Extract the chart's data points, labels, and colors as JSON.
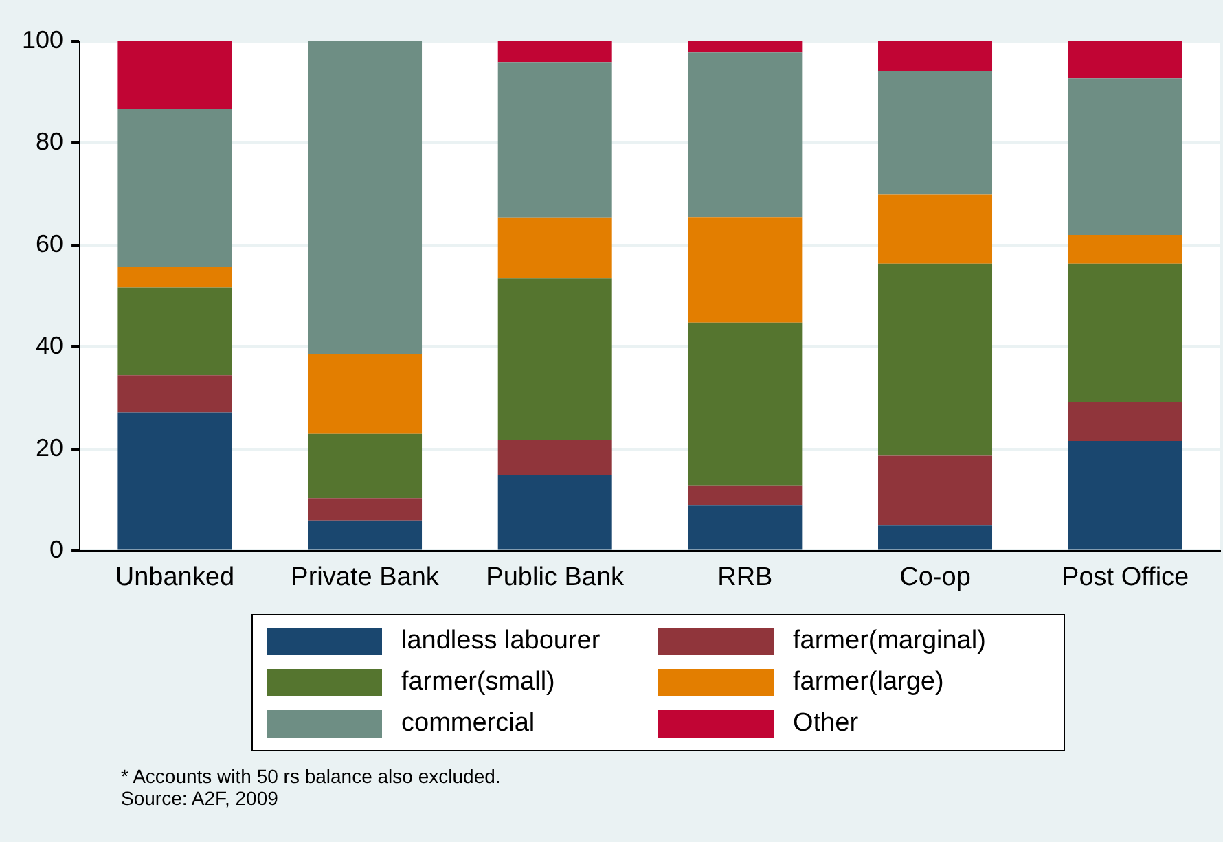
{
  "chart_data": {
    "type": "bar",
    "stacked": true,
    "categories": [
      "Unbanked",
      "Private Bank",
      "Public Bank",
      "RRB",
      "Co-op",
      "Post Office"
    ],
    "series": [
      {
        "name": "landless labourer",
        "color": "#1a476f",
        "values": [
          27.2,
          6.0,
          14.9,
          8.9,
          5.0,
          21.6
        ]
      },
      {
        "name": "farmer(marginal)",
        "color": "#90353b",
        "values": [
          7.3,
          4.4,
          6.9,
          4.0,
          13.7,
          7.6
        ]
      },
      {
        "name": "farmer(small)",
        "color": "#55752f",
        "values": [
          17.2,
          12.6,
          31.7,
          31.9,
          37.7,
          27.2
        ]
      },
      {
        "name": "farmer(large)",
        "color": "#e37e00",
        "values": [
          4.0,
          15.7,
          11.9,
          20.7,
          13.5,
          5.6
        ]
      },
      {
        "name": "commercial",
        "color": "#6e8e84",
        "values": [
          31.0,
          61.3,
          30.4,
          32.3,
          24.2,
          30.7
        ]
      },
      {
        "name": "Other",
        "color": "#c10534",
        "values": [
          13.3,
          0,
          4.2,
          2.2,
          5.9,
          7.3
        ]
      }
    ],
    "ylim": [
      0,
      100
    ],
    "yticks": [
      0,
      20,
      40,
      60,
      80,
      100
    ],
    "grid": "y",
    "legend": "bottom",
    "annotations": [
      "* Accounts with 50 rs balance also excluded.",
      "Source: A2F, 2009"
    ]
  }
}
